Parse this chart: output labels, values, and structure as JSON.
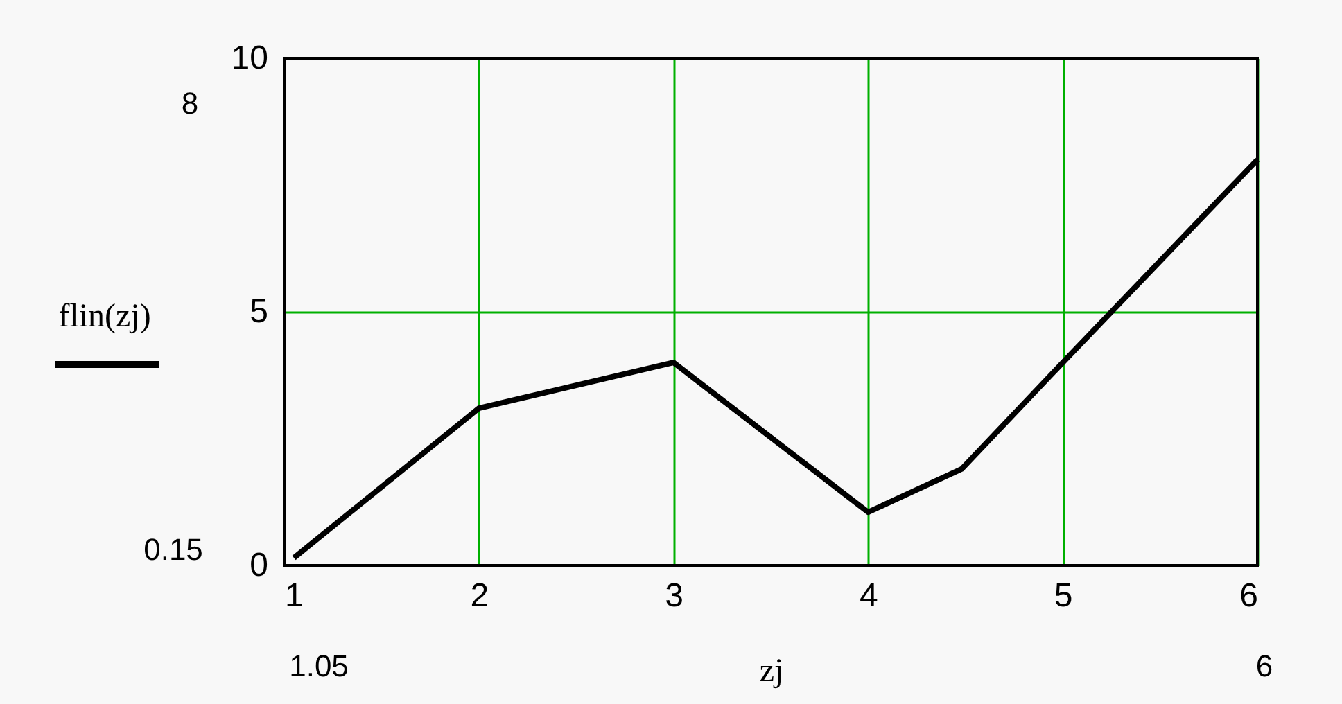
{
  "chart_data": {
    "type": "line",
    "xlabel": "zj",
    "ylabel": "flin(zj)",
    "x": [
      1.05,
      2,
      3,
      4,
      4.48,
      5,
      6
    ],
    "series": [
      {
        "color": "#000000",
        "values": [
          0.15,
          3.1,
          4.0,
          1.05,
          1.9,
          4.0,
          8.0
        ]
      }
    ],
    "xlim": [
      1,
      6
    ],
    "xticks": [
      1,
      2,
      3,
      4,
      5,
      6
    ],
    "ylim": [
      0,
      10
    ],
    "yticks": [
      0,
      5,
      10
    ],
    "grid": true,
    "line_style": "solid",
    "marker": "none",
    "annotations": [
      "8",
      "0.15",
      "1.05",
      "6"
    ]
  }
}
